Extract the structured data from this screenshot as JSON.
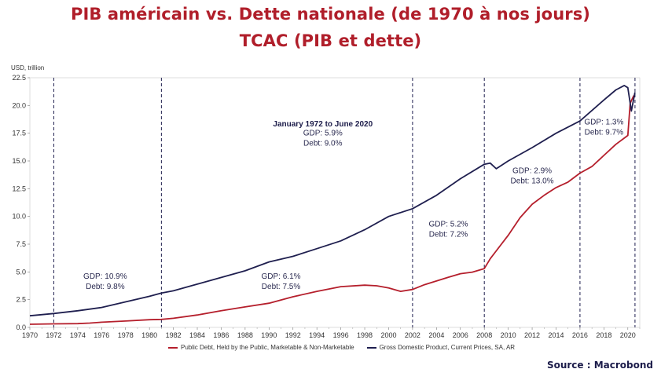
{
  "title": "PIB américain vs. Dette nationale (de 1970 à nos jours)",
  "subtitle": "TCAC (PIB et dette)",
  "source": "Source : Macrobond",
  "colors": {
    "title": "#b01e2a",
    "gdp": "#1f1f4f",
    "debt": "#b51f2c",
    "divider": "#1f1f4f"
  },
  "chart_data": {
    "type": "line",
    "unit_label": "USD, trillion",
    "xlim": [
      1970,
      2021
    ],
    "ylim": [
      0,
      22.5
    ],
    "x_ticks": [
      "1970",
      "1972",
      "1974",
      "1976",
      "1978",
      "1980",
      "1982",
      "1984",
      "1986",
      "1988",
      "1990",
      "1992",
      "1994",
      "1996",
      "1998",
      "2000",
      "2002",
      "2004",
      "2006",
      "2008",
      "2010",
      "2012",
      "2014",
      "2016",
      "2018",
      "2020"
    ],
    "y_ticks": [
      "0.0",
      "2.5",
      "5.0",
      "7.5",
      "10.0",
      "12.5",
      "15.0",
      "17.5",
      "20.0",
      "22.5"
    ],
    "dividers": [
      1972.0,
      1981.0,
      2002.0,
      2008.0,
      2016.0,
      2020.6
    ],
    "series": [
      {
        "name": "Public Debt, Held by the Public, Marketable & Non-Marketable",
        "color": "#b51f2c",
        "points": [
          [
            1970,
            0.28
          ],
          [
            1972,
            0.32
          ],
          [
            1974,
            0.34
          ],
          [
            1975,
            0.39
          ],
          [
            1976,
            0.47
          ],
          [
            1978,
            0.57
          ],
          [
            1980,
            0.69
          ],
          [
            1981,
            0.72
          ],
          [
            1982,
            0.82
          ],
          [
            1984,
            1.12
          ],
          [
            1986,
            1.5
          ],
          [
            1988,
            1.85
          ],
          [
            1990,
            2.18
          ],
          [
            1992,
            2.76
          ],
          [
            1994,
            3.25
          ],
          [
            1996,
            3.67
          ],
          [
            1998,
            3.81
          ],
          [
            1999,
            3.75
          ],
          [
            2000,
            3.55
          ],
          [
            2001,
            3.25
          ],
          [
            2002,
            3.42
          ],
          [
            2003,
            3.85
          ],
          [
            2004,
            4.18
          ],
          [
            2005,
            4.52
          ],
          [
            2006,
            4.84
          ],
          [
            2007,
            4.98
          ],
          [
            2008,
            5.3
          ],
          [
            2008.5,
            6.2
          ],
          [
            2009,
            6.9
          ],
          [
            2010,
            8.3
          ],
          [
            2011,
            9.9
          ],
          [
            2012,
            11.1
          ],
          [
            2013,
            11.9
          ],
          [
            2014,
            12.6
          ],
          [
            2015,
            13.1
          ],
          [
            2016,
            13.9
          ],
          [
            2017,
            14.5
          ],
          [
            2018,
            15.5
          ],
          [
            2019,
            16.5
          ],
          [
            2020,
            17.3
          ],
          [
            2020.2,
            20.2
          ],
          [
            2020.5,
            20.9
          ]
        ]
      },
      {
        "name": "Gross Domestic Product, Current Prices, SA, AR",
        "color": "#1f1f4f",
        "points": [
          [
            1970,
            1.05
          ],
          [
            1972,
            1.25
          ],
          [
            1974,
            1.5
          ],
          [
            1976,
            1.8
          ],
          [
            1978,
            2.3
          ],
          [
            1980,
            2.8
          ],
          [
            1981,
            3.1
          ],
          [
            1982,
            3.3
          ],
          [
            1984,
            3.9
          ],
          [
            1986,
            4.5
          ],
          [
            1988,
            5.1
          ],
          [
            1990,
            5.9
          ],
          [
            1992,
            6.4
          ],
          [
            1994,
            7.1
          ],
          [
            1996,
            7.8
          ],
          [
            1998,
            8.8
          ],
          [
            2000,
            10.0
          ],
          [
            2002,
            10.7
          ],
          [
            2004,
            11.9
          ],
          [
            2006,
            13.4
          ],
          [
            2008,
            14.7
          ],
          [
            2008.5,
            14.8
          ],
          [
            2009,
            14.3
          ],
          [
            2010,
            15.0
          ],
          [
            2012,
            16.2
          ],
          [
            2014,
            17.5
          ],
          [
            2016,
            18.6
          ],
          [
            2018,
            20.5
          ],
          [
            2019,
            21.4
          ],
          [
            2019.7,
            21.8
          ],
          [
            2020,
            21.6
          ],
          [
            2020.3,
            19.5
          ],
          [
            2020.6,
            21.2
          ]
        ]
      }
    ],
    "annotations": [
      {
        "lines": [
          "January 1972 to June 2020"
        ],
        "x": 1994.5,
        "y": 18.1,
        "bold": true
      },
      {
        "lines": [
          "GDP: 5.9%",
          "Debt: 9.0%"
        ],
        "x": 1994.5,
        "y": 17.3
      },
      {
        "lines": [
          "GDP: 10.9%",
          "Debt: 9.8%"
        ],
        "x": 1976.3,
        "y": 4.4
      },
      {
        "lines": [
          "GDP: 6.1%",
          "Debt: 7.5%"
        ],
        "x": 1991.0,
        "y": 4.4
      },
      {
        "lines": [
          "GDP: 5.2%",
          "Debt: 7.2%"
        ],
        "x": 2005.0,
        "y": 9.1
      },
      {
        "lines": [
          "GDP: 2.9%",
          "Debt: 13.0%"
        ],
        "x": 2012.0,
        "y": 13.9
      },
      {
        "lines": [
          "GDP: 1.3%",
          "Debt: 9.7%"
        ],
        "x": 2018.0,
        "y": 18.3
      }
    ]
  }
}
